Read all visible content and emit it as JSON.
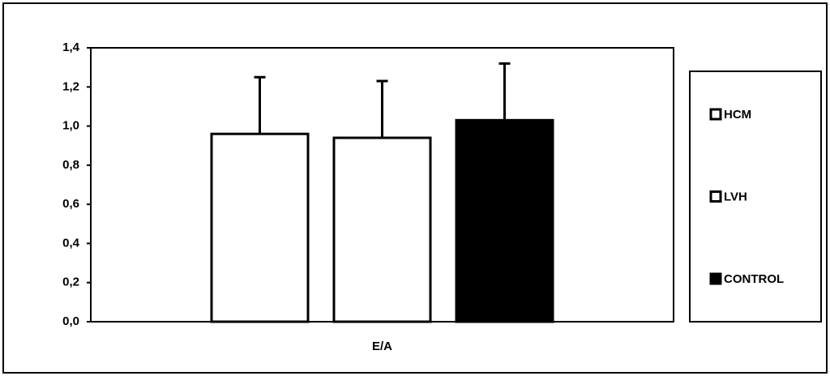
{
  "chart_data": {
    "type": "bar",
    "categories": [
      "E/A"
    ],
    "series": [
      {
        "name": "HCM",
        "color": "#ffffff",
        "values": [
          0.96
        ],
        "errors": [
          0.29
        ]
      },
      {
        "name": "LVH",
        "color": "#ffffff",
        "values": [
          0.94
        ],
        "errors": [
          0.29
        ]
      },
      {
        "name": "CONTROL",
        "color": "#000000",
        "values": [
          1.03
        ],
        "errors": [
          0.29
        ]
      }
    ],
    "ylim": [
      0,
      1.4
    ],
    "yticks": [
      {
        "value": 0,
        "label": "0,0"
      },
      {
        "value": 0.2,
        "label": "0,2"
      },
      {
        "value": 0.4,
        "label": "0,4"
      },
      {
        "value": 0.6,
        "label": "0,6"
      },
      {
        "value": 0.8,
        "label": "0,8"
      },
      {
        "value": 1.0,
        "label": "1,0"
      },
      {
        "value": 1.2,
        "label": "1,2"
      },
      {
        "value": 1.4,
        "label": "1,4"
      }
    ],
    "grid": false,
    "legend": "right"
  }
}
